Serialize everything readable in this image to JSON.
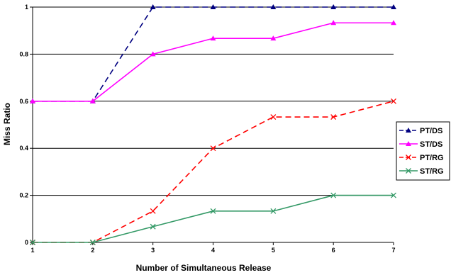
{
  "chart_data": {
    "type": "line",
    "title": "",
    "xlabel": "Number of Simultaneous Release",
    "ylabel": "Miss Ratio",
    "x": [
      1,
      2,
      3,
      4,
      5,
      6,
      7
    ],
    "xlim": [
      1,
      7
    ],
    "ylim": [
      0,
      1
    ],
    "yticks": [
      0,
      0.2,
      0.4,
      0.6,
      0.8,
      1
    ],
    "grid": "horizontal",
    "legend_position": "right",
    "series": [
      {
        "name": "PT/DS",
        "values": [
          0.6,
          0.6,
          1.0,
          1.0,
          1.0,
          1.0,
          1.0
        ],
        "color": "#000080",
        "dash": "dashed",
        "marker": "triangle"
      },
      {
        "name": "ST/DS",
        "values": [
          0.6,
          0.6,
          0.8,
          0.867,
          0.867,
          0.933,
          0.933
        ],
        "color": "#ff00ff",
        "dash": "solid",
        "marker": "triangle"
      },
      {
        "name": "PT/RG",
        "values": [
          0,
          0,
          0.133,
          0.4,
          0.533,
          0.533,
          0.6
        ],
        "color": "#ff0000",
        "dash": "dashed",
        "marker": "x"
      },
      {
        "name": "ST/RG",
        "values": [
          0,
          0,
          0.067,
          0.133,
          0.133,
          0.2,
          0.2
        ],
        "color": "#339966",
        "dash": "solid",
        "marker": "x"
      }
    ]
  }
}
